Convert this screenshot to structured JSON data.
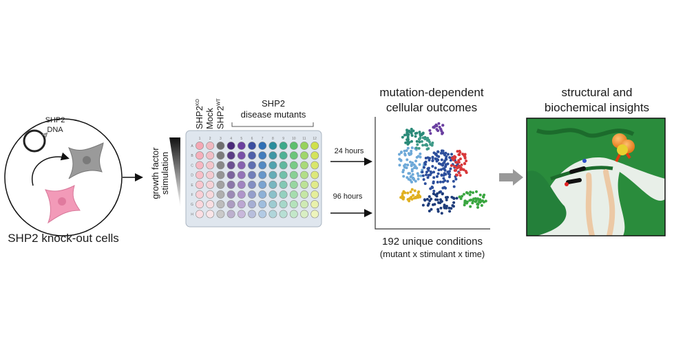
{
  "cells": {
    "plasmid_label": [
      "SHP2",
      "DNA"
    ],
    "caption": "SHP2 knock-out cells"
  },
  "stimulation": [
    "growth factor",
    "stimulation"
  ],
  "plate": {
    "controls": [
      {
        "text": "SHP2",
        "sup": "KO"
      },
      {
        "text": "Mock"
      },
      {
        "text": "SHP2",
        "sup": "WT"
      }
    ],
    "mutants_label": [
      "SHP2",
      "disease mutants"
    ],
    "rows": [
      "A",
      "B",
      "C",
      "D",
      "E",
      "F",
      "G",
      "H"
    ],
    "columns": [
      "1",
      "2",
      "3",
      "4",
      "5",
      "6",
      "7",
      "8",
      "9",
      "10",
      "11",
      "12"
    ]
  },
  "timepoints": [
    "24 hours",
    "96 hours"
  ],
  "outcomes": {
    "title": [
      "mutation-dependent",
      "cellular outcomes"
    ],
    "caption": "192 unique conditions",
    "subcaption": "(mutant x stimulant x time)"
  },
  "insights": {
    "title": [
      "structural and",
      "biochemical insights"
    ]
  }
}
